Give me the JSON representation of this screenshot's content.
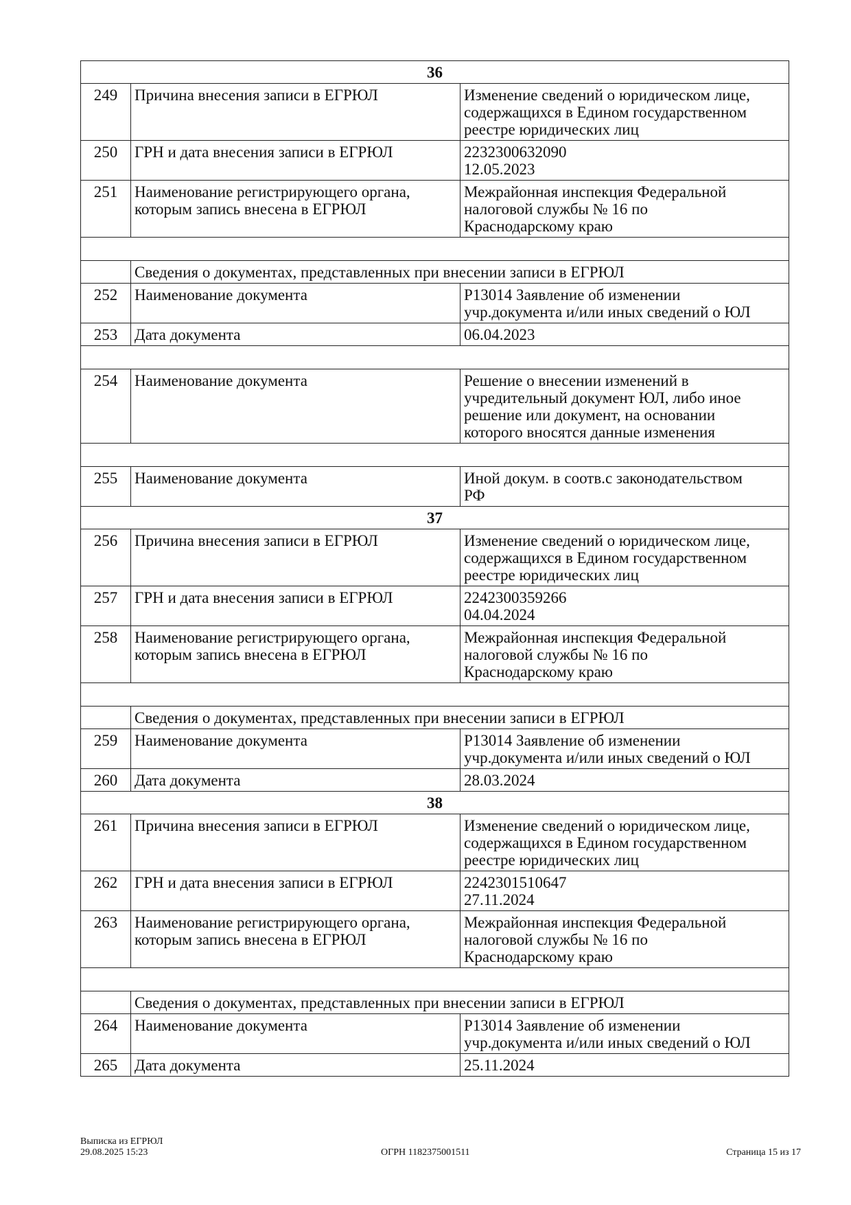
{
  "rows": [
    {
      "type": "section",
      "label": "36"
    },
    {
      "type": "row",
      "num": "249",
      "label": "Причина внесения записи в ЕГРЮЛ",
      "value": "Изменение сведений о юридическом лице,\nсодержащихся в Едином государственном\nреестре юридических лиц"
    },
    {
      "type": "row",
      "num": "250",
      "label": "ГРН и дата внесения записи в ЕГРЮЛ",
      "value": "2232300632090\n12.05.2023"
    },
    {
      "type": "row",
      "num": "251",
      "label": "Наименование регистрирующего органа,\nкоторым запись внесена в ЕГРЮЛ",
      "value": "Межрайонная инспекция Федеральной\nналоговой службы № 16 по\nКраснодарскому краю"
    },
    {
      "type": "empty"
    },
    {
      "type": "sub",
      "label": "Сведения о документах, представленных при внесении записи в ЕГРЮЛ"
    },
    {
      "type": "row",
      "num": "252",
      "label": "Наименование документа",
      "value": "Р13014 Заявление об изменении\nучр.документа и/или иных сведений о ЮЛ"
    },
    {
      "type": "row",
      "num": "253",
      "label": "Дата документа",
      "value": "06.04.2023"
    },
    {
      "type": "empty"
    },
    {
      "type": "row",
      "num": "254",
      "label": "Наименование документа",
      "value": "Решение о внесении изменений в\nучредительный документ ЮЛ, либо иное\nрешение или документ, на основании\nкоторого вносятся данные изменения"
    },
    {
      "type": "empty"
    },
    {
      "type": "row",
      "num": "255",
      "label": "Наименование документа",
      "value": "Иной докум. в соотв.с законодательством\nРФ"
    },
    {
      "type": "section",
      "label": "37"
    },
    {
      "type": "row",
      "num": "256",
      "label": "Причина внесения записи в ЕГРЮЛ",
      "value": "Изменение сведений о юридическом лице,\nсодержащихся в Едином государственном\nреестре юридических лиц"
    },
    {
      "type": "row",
      "num": "257",
      "label": "ГРН и дата внесения записи в ЕГРЮЛ",
      "value": "2242300359266\n04.04.2024"
    },
    {
      "type": "row",
      "num": "258",
      "label": "Наименование регистрирующего органа,\nкоторым запись внесена в ЕГРЮЛ",
      "value": "Межрайонная инспекция Федеральной\nналоговой службы № 16 по\nКраснодарскому краю"
    },
    {
      "type": "empty"
    },
    {
      "type": "sub",
      "label": "Сведения о документах, представленных при внесении записи в ЕГРЮЛ"
    },
    {
      "type": "row",
      "num": "259",
      "label": "Наименование документа",
      "value": "Р13014 Заявление об изменении\nучр.документа и/или иных сведений о ЮЛ"
    },
    {
      "type": "row",
      "num": "260",
      "label": "Дата документа",
      "value": "28.03.2024"
    },
    {
      "type": "section",
      "label": "38"
    },
    {
      "type": "row",
      "num": "261",
      "label": "Причина внесения записи в ЕГРЮЛ",
      "value": "Изменение сведений о юридическом лице,\nсодержащихся в Едином государственном\nреестре юридических лиц"
    },
    {
      "type": "row",
      "num": "262",
      "label": "ГРН и дата внесения записи в ЕГРЮЛ",
      "value": "2242301510647\n27.11.2024"
    },
    {
      "type": "row",
      "num": "263",
      "label": "Наименование регистрирующего органа,\nкоторым запись внесена в ЕГРЮЛ",
      "value": "Межрайонная инспекция Федеральной\nналоговой службы № 16 по\nКраснодарскому краю"
    },
    {
      "type": "empty"
    },
    {
      "type": "sub",
      "label": "Сведения о документах, представленных при внесении записи в ЕГРЮЛ"
    },
    {
      "type": "row",
      "num": "264",
      "label": "Наименование документа",
      "value": "Р13014 Заявление об изменении\nучр.документа и/или иных сведений о ЮЛ"
    },
    {
      "type": "row",
      "num": "265",
      "label": "Дата документа",
      "value": "25.11.2024"
    }
  ],
  "footer": {
    "doc_title": "Выписка из ЕГРЮЛ",
    "datetime": "29.08.2025 15:23",
    "ogrn": "ОГРН 1182375001511",
    "page": "Страница 15 из 17"
  }
}
